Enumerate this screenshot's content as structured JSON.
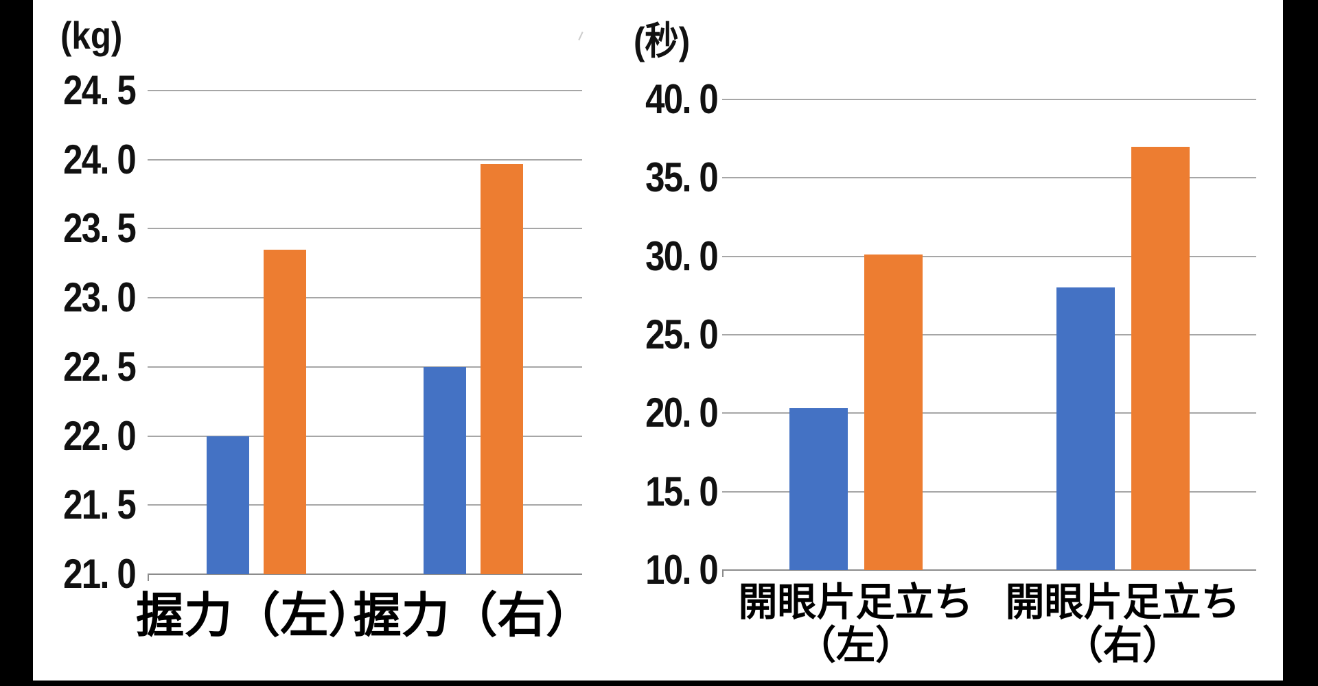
{
  "page": {
    "background": "#000000",
    "canvas_background": "#FFFFFF",
    "gridline_color": "#A6A6A6",
    "axis_color": "#8C8C8C"
  },
  "chart_data": [
    {
      "type": "bar",
      "title": "",
      "unit": "(kg)",
      "categories": [
        "握力（左）",
        "握力（右）"
      ],
      "category_lines": [
        [
          "握力（左）"
        ],
        [
          "握力（右）"
        ]
      ],
      "series": [
        {
          "name": "blue",
          "color": "#4472C4",
          "values": [
            22.0,
            22.5
          ]
        },
        {
          "name": "orange",
          "color": "#ED7D31",
          "values": [
            23.35,
            23.97
          ]
        }
      ],
      "ylim": [
        21.0,
        24.5
      ],
      "ytick_step": 0.5,
      "ytick_labels": [
        "24. 5",
        "24. 0",
        "23. 5",
        "23. 0",
        "22. 5",
        "22. 0",
        "21. 5",
        "21. 0"
      ],
      "grid": true,
      "legend": "none"
    },
    {
      "type": "bar",
      "title": "",
      "unit": "(秒)",
      "categories": [
        "開眼片足立ち（左）",
        "開眼片足立ち（右）"
      ],
      "category_lines": [
        [
          "開眼片足立ち",
          "（左）"
        ],
        [
          "開眼片足立ち",
          "（右）"
        ]
      ],
      "series": [
        {
          "name": "blue",
          "color": "#4472C4",
          "values": [
            20.3,
            28.0
          ]
        },
        {
          "name": "orange",
          "color": "#ED7D31",
          "values": [
            30.1,
            37.0
          ]
        }
      ],
      "ylim": [
        10.0,
        40.0
      ],
      "ytick_step": 5.0,
      "ytick_labels": [
        "40. 0",
        "35. 0",
        "30. 0",
        "25. 0",
        "20. 0",
        "15. 0",
        "10. 0"
      ],
      "grid": true,
      "legend": "none"
    }
  ]
}
